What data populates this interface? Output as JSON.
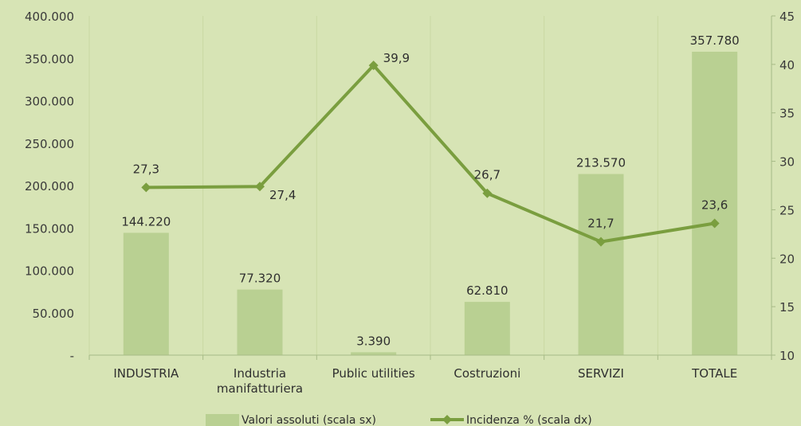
{
  "chart_data": {
    "type": "bar",
    "categories": [
      [
        "INDUSTRIA"
      ],
      [
        "Industria",
        "manifatturiera"
      ],
      [
        "Public utilities"
      ],
      [
        "Costruzioni"
      ],
      [
        "SERVIZI"
      ],
      [
        "TOTALE"
      ]
    ],
    "series": [
      {
        "name": "Valori assoluti (scala sx)",
        "type": "bar",
        "axis": "left",
        "values": [
          144220,
          77320,
          3390,
          62810,
          213570,
          357780
        ],
        "labels": [
          "144.220",
          "77.320",
          "3.390",
          "62.810",
          "213.570",
          "357.780"
        ]
      },
      {
        "name": "Incidenza % (scala dx)",
        "type": "line",
        "axis": "right",
        "values": [
          27.3,
          27.4,
          39.9,
          26.7,
          21.7,
          23.6
        ],
        "labels": [
          "27,3",
          "27,4",
          "39,9",
          "26,7",
          "21,7",
          "23,6"
        ]
      }
    ],
    "y_left": {
      "range": [
        0,
        400000
      ],
      "ticks": [
        0,
        50000,
        100000,
        150000,
        200000,
        250000,
        300000,
        350000,
        400000
      ],
      "tick_labels": [
        "-",
        "50.000",
        "100.000",
        "150.000",
        "200.000",
        "250.000",
        "300.000",
        "350.000",
        "400.000"
      ]
    },
    "y_right": {
      "range": [
        10,
        45
      ],
      "ticks": [
        10,
        15,
        20,
        25,
        30,
        35,
        40,
        45
      ],
      "tick_labels": [
        "10",
        "15",
        "20",
        "25",
        "30",
        "35",
        "40",
        "45"
      ]
    },
    "grid": "vertical",
    "legend_position": "bottom",
    "colors": {
      "background": "#d7e4b5",
      "bar": "#b9d092",
      "line": "#7a9e3f",
      "grid": "#c9d9a2",
      "axis": "#a6ba86"
    }
  }
}
